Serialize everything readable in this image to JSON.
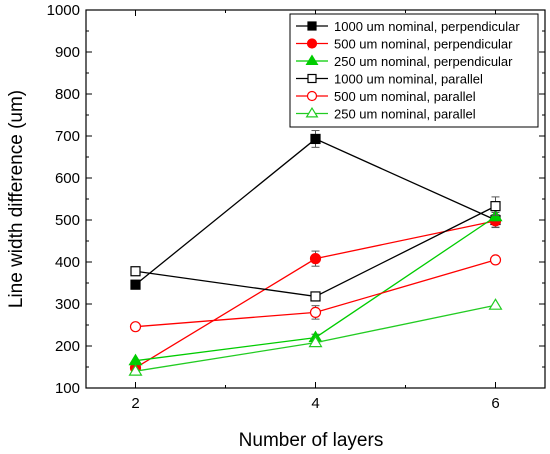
{
  "chart_data": {
    "type": "line",
    "xlabel": "Number of layers",
    "ylabel": "Line width difference (um)",
    "xlim": [
      1.45,
      6.55
    ],
    "ylim": [
      100,
      1000
    ],
    "xticks": [
      2,
      4,
      6
    ],
    "yticks": [
      100,
      200,
      300,
      400,
      500,
      600,
      700,
      800,
      900,
      1000
    ],
    "legend_position": "top-right",
    "grid": false,
    "x": [
      2,
      4,
      6
    ],
    "series": [
      {
        "name": "1000 um nominal, perpendicular",
        "values": [
          346,
          693,
          500
        ],
        "errors": [
          0,
          20,
          18
        ],
        "color": "#000000",
        "marker": "square",
        "filled": true
      },
      {
        "name": "500 um nominal, perpendicular",
        "values": [
          148,
          408,
          498
        ],
        "errors": [
          0,
          18,
          15
        ],
        "color": "#ff0000",
        "marker": "circle",
        "filled": true
      },
      {
        "name": "250 um nominal, perpendicular",
        "values": [
          165,
          220,
          508
        ],
        "errors": [
          0,
          8,
          10
        ],
        "color": "#00cc00",
        "marker": "triangle",
        "filled": true
      },
      {
        "name": "1000 um nominal, parallel",
        "values": [
          378,
          318,
          533
        ],
        "errors": [
          0,
          0,
          22
        ],
        "color": "#000000",
        "marker": "square",
        "filled": false
      },
      {
        "name": "500 um nominal, parallel",
        "values": [
          246,
          280,
          405
        ],
        "errors": [
          0,
          16,
          0
        ],
        "color": "#ff0000",
        "marker": "circle",
        "filled": false
      },
      {
        "name": "250 um nominal, parallel",
        "values": [
          140,
          208,
          297
        ],
        "errors": [
          0,
          0,
          0
        ],
        "color": "#22cc22",
        "marker": "triangle",
        "filled": false
      }
    ]
  }
}
